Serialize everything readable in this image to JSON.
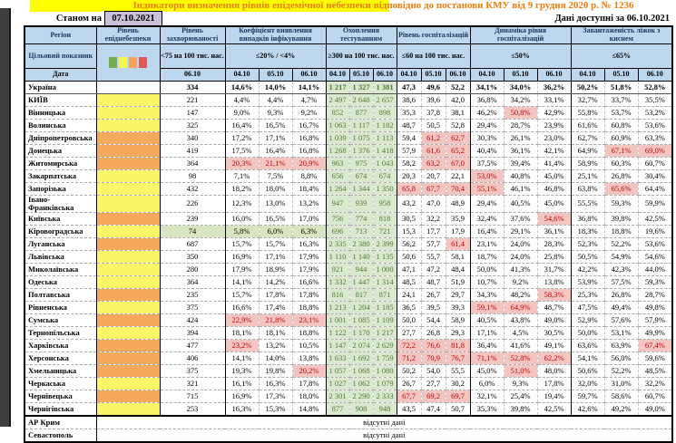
{
  "title": "Індикатори визначення рівнів епідемічної небезпеки відповідно до постанови КМУ від 9 грудня 2020 р. № 1236",
  "topbar": {
    "as_of_label": "Станом на",
    "as_of_date": "07.10.2021",
    "available_label": "Дані доступні за  06.10.2021"
  },
  "header": {
    "region": "Регіон",
    "target_label": "Цільовий показник",
    "date_label": "Дата",
    "legend_colors": [
      "#72ac4d",
      "#f7f54f",
      "#f2a45c",
      "#dd5b57"
    ],
    "groups": [
      {
        "title": "Рівень епіднебезпеки",
        "target": "",
        "dates": []
      },
      {
        "title": "Рівень захворюваності",
        "target": "<75 на 100 тис. нас.",
        "dates": [
          "06.10"
        ]
      },
      {
        "title": "Коефіцієнт виявлення випадків інфікування",
        "target": "≤20% / <4%",
        "dates": [
          "04.10",
          "05.10",
          "06.10"
        ]
      },
      {
        "title": "Охоплення тестуванням",
        "target": "≥300 на 100 тис. нас.",
        "dates": [
          "04.10",
          "05.10",
          "06.10"
        ]
      },
      {
        "title": "Рівень госпіталізацій",
        "target": "≤60 на 100 тис. нас.",
        "dates": [
          "04.10",
          "05.10",
          "06.10"
        ]
      },
      {
        "title": "Динаміка рівня госпіталізацій",
        "target": "≤50%",
        "dates": [
          "04.10",
          "05.10",
          "06.10"
        ]
      },
      {
        "title": "Завантаженість ліжок з киснем",
        "target": "≤65%",
        "dates": [
          "04.10",
          "05.10",
          "06.10"
        ]
      }
    ]
  },
  "no_data_text": "відсутні дані",
  "legend_note": "cell value prefixes: * = threshold exceeded (red), + = target met (green)",
  "rows": [
    {
      "name": "Україна",
      "level": "none",
      "bold": true,
      "morb": "334",
      "coef": [
        "14,6%",
        "14,0%",
        "14,1%"
      ],
      "test": [
        "1 217",
        "1 327",
        "1 381"
      ],
      "hosp": [
        "47,3",
        "49,6",
        "52,2"
      ],
      "dyn": [
        "34,1%",
        "34,0%",
        "36,2%"
      ],
      "load": [
        "50,2%",
        "51,8%",
        "52,8%"
      ]
    },
    {
      "name": "КИЇВ",
      "level": "yellow",
      "morb": "221",
      "coef": [
        "4,4%",
        "4,4%",
        "4,7%"
      ],
      "test": [
        "2 497",
        "2 648",
        "2 657"
      ],
      "hosp": [
        "38,6",
        "39,6",
        "42,0"
      ],
      "dyn": [
        "36,8%",
        "34,2%",
        "33,1%"
      ],
      "load": [
        "32,7%",
        "33,7%",
        "35,5%"
      ]
    },
    {
      "name": "Вінницька",
      "level": "yellow",
      "morb": "147",
      "coef": [
        "9,0%",
        "9,3%",
        "9,2%"
      ],
      "test": [
        "852",
        "877",
        "898"
      ],
      "hosp": [
        "35,3",
        "37,8",
        "38,1"
      ],
      "dyn": [
        "46,2%",
        "*50,8%",
        "42,9%"
      ],
      "load": [
        "55,8%",
        "53,7%",
        "53,2%"
      ]
    },
    {
      "name": "Волинська",
      "level": "yellow",
      "morb": "325",
      "coef": [
        "16,4%",
        "16,5%",
        "16,7%"
      ],
      "test": [
        "1 063",
        "1 117",
        "1 182"
      ],
      "hosp": [
        "48,7",
        "50,5",
        "52,8"
      ],
      "dyn": [
        "29,4%",
        "28,7%",
        "23,9%"
      ],
      "load": [
        "61,6%",
        "60,8%",
        "53,6%"
      ]
    },
    {
      "name": "Дніпропетровська",
      "level": "orange",
      "morb": "340",
      "coef": [
        "17,2%",
        "17,1%",
        "16,8%"
      ],
      "test": [
        "1 039",
        "1 075",
        "1 113"
      ],
      "hosp": [
        "59,4",
        "*61,2",
        "*62,7"
      ],
      "dyn": [
        "30,3%",
        "26,1%",
        "23,0%"
      ],
      "load": [
        "62,7%",
        "60,9%",
        "63,3%"
      ]
    },
    {
      "name": "Донецька",
      "level": "orange",
      "morb": "419",
      "coef": [
        "17,5%",
        "16,4%",
        "16,8%"
      ],
      "test": [
        "1 268",
        "1 376",
        "1 418"
      ],
      "hosp": [
        "57,9",
        "*61,6",
        "*65,2"
      ],
      "dyn": [
        "40,4%",
        "36,1%",
        "42,1%"
      ],
      "load": [
        "64,9%",
        "*67,1%",
        "*69,0%"
      ]
    },
    {
      "name": "Житомирська",
      "level": "orange",
      "morb": "364",
      "coef": [
        "*20,3%",
        "*21,1%",
        "*20,9%"
      ],
      "test": [
        "963",
        "975",
        "1 043"
      ],
      "hosp": [
        "58,2",
        "*63,2",
        "*67,0"
      ],
      "dyn": [
        "37,5%",
        "39,4%",
        "41,4%"
      ],
      "load": [
        "58,9%",
        "60,3%",
        "60,7%"
      ]
    },
    {
      "name": "Закарпатська",
      "level": "yellow",
      "morb": "98",
      "coef": [
        "7,1%",
        "7,5%",
        "8,8%"
      ],
      "test": [
        "656",
        "674",
        "674"
      ],
      "hosp": [
        "20,3",
        "20,7",
        "22,1"
      ],
      "dyn": [
        "*53,0%",
        "40,8%",
        "45,0%"
      ],
      "load": [
        "25,1%",
        "26,8%",
        "30,4%"
      ]
    },
    {
      "name": "Запорізька",
      "level": "yellow",
      "morb": "432",
      "coef": [
        "18,2%",
        "18,0%",
        "18,4%"
      ],
      "test": [
        "1 264",
        "1 344",
        "1 350"
      ],
      "hosp": [
        "*65,8",
        "*67,7",
        "*70,4"
      ],
      "dyn": [
        "*55,1%",
        "46,1%",
        "46,8%"
      ],
      "load": [
        "63,8%",
        "*65,6%",
        "64,4%"
      ]
    },
    {
      "name": "Івано-Франківська",
      "level": "yellow",
      "morb": "226",
      "coef": [
        "12,3%",
        "13,0%",
        "13,2%"
      ],
      "test": [
        "947",
        "939",
        "958"
      ],
      "hosp": [
        "43,2",
        "47,0",
        "48,9"
      ],
      "dyn": [
        "29,4%",
        "40,5%",
        "45,0%"
      ],
      "load": [
        "55,5%",
        "59,3%",
        "59,9%"
      ]
    },
    {
      "name": "Київська",
      "level": "orange",
      "morb": "239",
      "coef": [
        "16,0%",
        "16,5%",
        "17,0%"
      ],
      "test": [
        "756",
        "774",
        "818"
      ],
      "hosp": [
        "30,5",
        "32,2",
        "35,9"
      ],
      "dyn": [
        "32,4%",
        "37,6%",
        "*54,6%"
      ],
      "load": [
        "36,8%",
        "39,8%",
        "42,5%"
      ]
    },
    {
      "name": "Кіровоградська",
      "level": "yellow",
      "morb": "+74",
      "coef": [
        "+5,8%",
        "+6,0%",
        "+6,3%"
      ],
      "test": [
        "696",
        "713",
        "721"
      ],
      "hosp": [
        "15,3",
        "17,7",
        "17,9"
      ],
      "dyn": [
        "16,4%",
        "29,1%",
        "36,1%"
      ],
      "load": [
        "18,3%",
        "18,8%",
        "19,6%"
      ]
    },
    {
      "name": "Луганська",
      "level": "orange",
      "morb": "687",
      "coef": [
        "15,7%",
        "15,7%",
        "16,3%"
      ],
      "test": [
        "2 335",
        "2 380",
        "2 399"
      ],
      "hosp": [
        "56,2",
        "57,7",
        "*61,4"
      ],
      "dyn": [
        "23,1%",
        "24,0%",
        "28,3%"
      ],
      "load": [
        "52,3%",
        "52,2%",
        "53,6%"
      ]
    },
    {
      "name": "Львівська",
      "level": "yellow",
      "morb": "350",
      "coef": [
        "16,9%",
        "17,1%",
        "17,9%"
      ],
      "test": [
        "1 110",
        "1 140",
        "1 135"
      ],
      "hosp": [
        "50,6",
        "55,7",
        "58,1"
      ],
      "dyn": [
        "18,7%",
        "24,0%",
        "25,8%"
      ],
      "load": [
        "50,5%",
        "54,9%",
        "54,6%"
      ]
    },
    {
      "name": "Миколаївська",
      "level": "yellow",
      "morb": "280",
      "coef": [
        "17,9%",
        "18,9%",
        "17,9%"
      ],
      "test": [
        "921",
        "944",
        "1 000"
      ],
      "hosp": [
        "47,1",
        "47,2",
        "48,4"
      ],
      "dyn": [
        "50,0%",
        "41,3%",
        "31,7%"
      ],
      "load": [
        "42,2%",
        "42,3%",
        "44,0%"
      ]
    },
    {
      "name": "Одеська",
      "level": "yellow",
      "morb": "364",
      "coef": [
        "14,1%",
        "14,2%",
        "16,6%"
      ],
      "test": [
        "1 332",
        "1 447",
        "1 314"
      ],
      "hosp": [
        "48,5",
        "48,7",
        "51,9"
      ],
      "dyn": [
        "10,7%",
        "9,2%",
        "13,8%"
      ],
      "load": [
        "53,9%",
        "57,5%",
        "59,3%"
      ]
    },
    {
      "name": "Полтавська",
      "level": "orange",
      "morb": "235",
      "coef": [
        "15,7%",
        "17,8%",
        "17,8%"
      ],
      "test": [
        "816",
        "817",
        "871"
      ],
      "hosp": [
        "24,1",
        "26,7",
        "29,7"
      ],
      "dyn": [
        "34,3%",
        "48,2%",
        "*58,3%"
      ],
      "load": [
        "25,3%",
        "26,8%",
        "28,7%"
      ]
    },
    {
      "name": "Рівненська",
      "level": "yellow",
      "morb": "375",
      "coef": [
        "16,6%",
        "17,4%",
        "18,8%"
      ],
      "test": [
        "1 213",
        "1 204",
        "1 185"
      ],
      "hosp": [
        "36,5",
        "39,5",
        "39,3"
      ],
      "dyn": [
        "*59,1%",
        "*64,9%",
        "48,7%"
      ],
      "load": [
        "47,5%",
        "49,4%",
        "49,8%"
      ]
    },
    {
      "name": "Сумська",
      "level": "orange",
      "morb": "424",
      "coef": [
        "*22,9%",
        "*21,8%",
        "*23,1%"
      ],
      "test": [
        "1 001",
        "1 085",
        "1 109"
      ],
      "hosp": [
        "50,0",
        "54,4",
        "58,9"
      ],
      "dyn": [
        "40,5%",
        "43,8%",
        "49,0%"
      ],
      "load": [
        "52,9%",
        "57,6%",
        "57,9%"
      ]
    },
    {
      "name": "Тернопільська",
      "level": "yellow",
      "morb": "394",
      "coef": [
        "18,1%",
        "18,1%",
        "18,8%"
      ],
      "test": [
        "1 122",
        "1 170",
        "1 217"
      ],
      "hosp": [
        "27,7",
        "26,8",
        "29,3"
      ],
      "dyn": [
        "17,1%",
        "4,5%",
        "30,5%"
      ],
      "load": [
        "50,0%",
        "53,1%",
        "49,9%"
      ]
    },
    {
      "name": "Харківська",
      "level": "orange",
      "morb": "477",
      "coef": [
        "*23,2%",
        "13,2%",
        "10,5%"
      ],
      "test": [
        "1 147",
        "2 074",
        "2 629"
      ],
      "hosp": [
        "*72,2",
        "*76,6",
        "*81,8"
      ],
      "dyn": [
        "36,4%",
        "41,6%",
        "49,1%"
      ],
      "load": [
        "63,6%",
        "63,9%",
        "*67,4%"
      ]
    },
    {
      "name": "Херсонська",
      "level": "orange",
      "morb": "406",
      "coef": [
        "14,1%",
        "14,0%",
        "13,8%"
      ],
      "test": [
        "1 633",
        "1 692",
        "1 759"
      ],
      "hosp": [
        "*71,2",
        "*70,9",
        "*76,7"
      ],
      "dyn": [
        "*71,1%",
        "*52,8%",
        "*62,2%"
      ],
      "load": [
        "54,1%",
        "56,0%",
        "59,6%"
      ]
    },
    {
      "name": "Хмельницька",
      "level": "orange",
      "morb": "375",
      "coef": [
        "19,3%",
        "19,8%",
        "*20,2%"
      ],
      "test": [
        "1 057",
        "1 068",
        "1 080"
      ],
      "hosp": [
        "50,2",
        "54,0",
        "55,5"
      ],
      "dyn": [
        "45,0%",
        "*51,0%",
        "48,0%"
      ],
      "load": [
        "50,6%",
        "52,2%",
        "48,5%"
      ]
    },
    {
      "name": "Черкаська",
      "level": "yellow",
      "morb": "321",
      "coef": [
        "16,1%",
        "16,3%",
        "17,8%"
      ],
      "test": [
        "1 027",
        "1 062",
        "1 079"
      ],
      "hosp": [
        "26,7",
        "27,7",
        "30,2"
      ],
      "dyn": [
        "6,0%",
        "9,3%",
        "17,8%"
      ],
      "load": [
        "32,0%",
        "31,0%",
        "32,2%"
      ]
    },
    {
      "name": "Чернівецька",
      "level": "orange",
      "morb": "715",
      "coef": [
        "16,9%",
        "17,3%",
        "18,0%"
      ],
      "test": [
        "2 301",
        "2 290",
        "2 333"
      ],
      "hosp": [
        "*67,7",
        "*69,2",
        "*69,7"
      ],
      "dyn": [
        "32,1%",
        "25,4%",
        "19,4%"
      ],
      "load": [
        "59,7%",
        "58,6%",
        "60,7%"
      ]
    },
    {
      "name": "Чернігівська",
      "level": "yellow",
      "morb": "253",
      "coef": [
        "16,3%",
        "15,3%",
        "14,8%"
      ],
      "test": [
        "877",
        "908",
        "948"
      ],
      "hosp": [
        "43,5",
        "47,4",
        "50,7"
      ],
      "dyn": [
        "35,3%",
        "39,8%",
        "42,5%"
      ],
      "load": [
        "42,6%",
        "49,2%",
        "49,0%"
      ]
    },
    {
      "name": "АР Крим",
      "nodata": true
    },
    {
      "name": "Севастополь",
      "nodata": true
    }
  ]
}
